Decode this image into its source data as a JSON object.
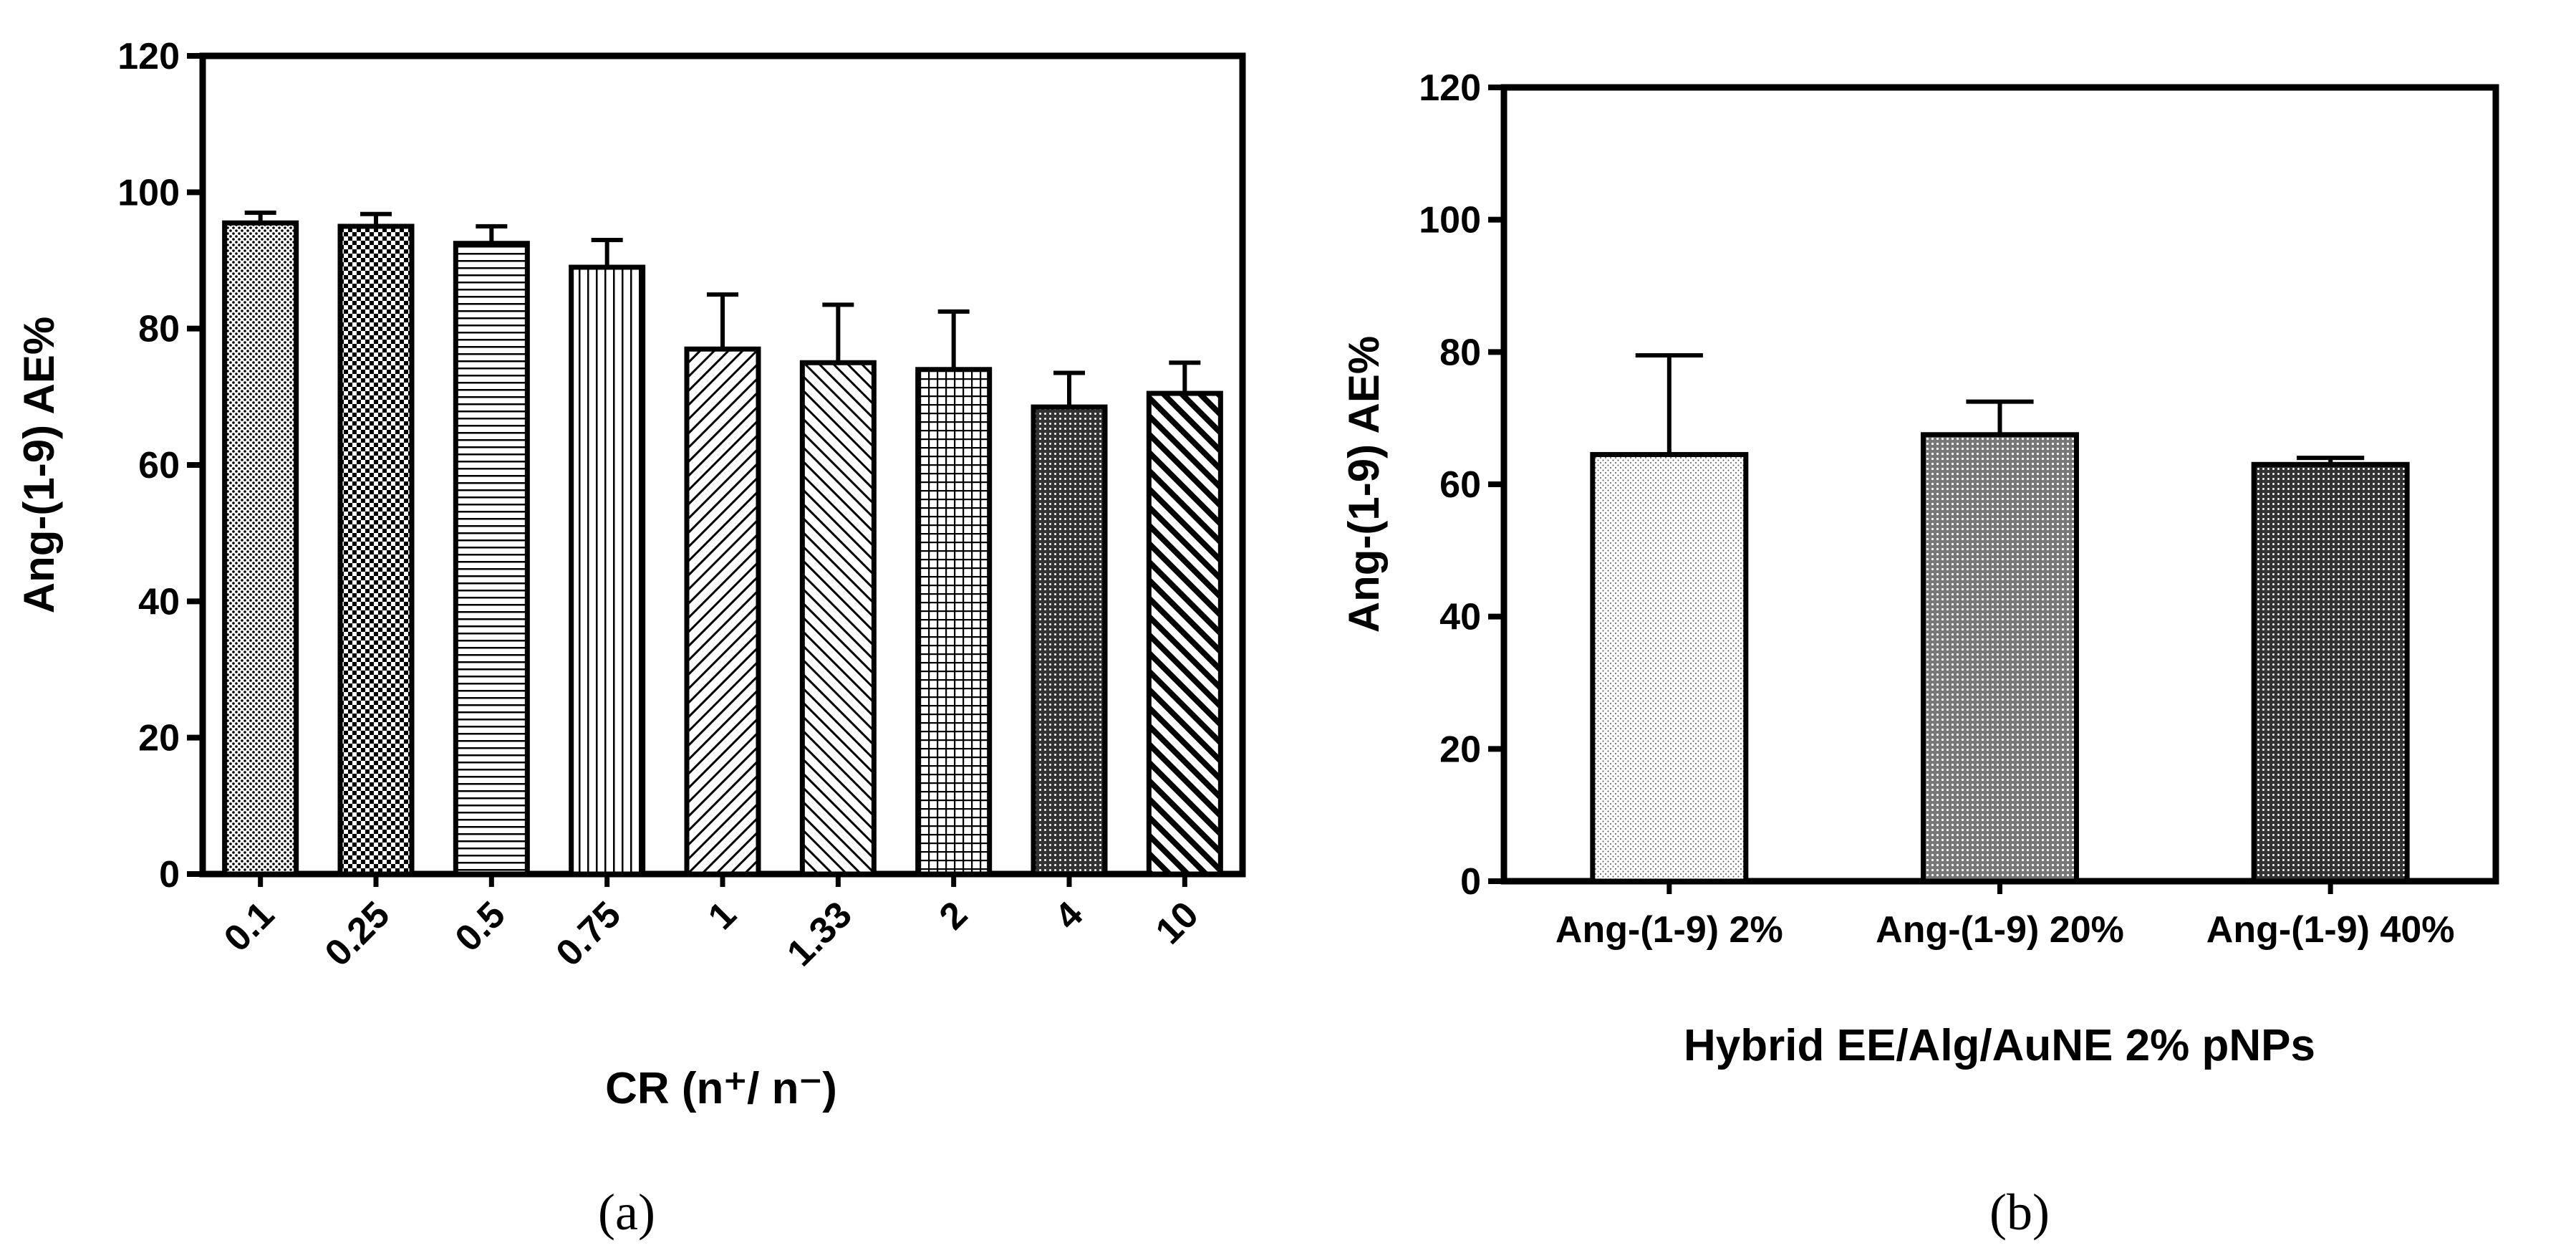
{
  "chart_data": [
    {
      "type": "bar",
      "panel_label": "(a)",
      "ylabel": "Ang-(1-9) AE%",
      "xlabel": "CR (n⁺/ n⁻)",
      "ylim": [
        0,
        120
      ],
      "yticks": [
        "0",
        "20",
        "40",
        "60",
        "80",
        "100",
        "120"
      ],
      "categories": [
        "0.1",
        "0.25",
        "0.5",
        "0.75",
        "1",
        "1.33",
        "2",
        "4",
        "10"
      ],
      "values": [
        95.5,
        95.0,
        92.5,
        89.0,
        77.0,
        75.0,
        74.0,
        68.5,
        70.5
      ],
      "errors": [
        1.5,
        1.8,
        2.5,
        4.0,
        8.0,
        8.5,
        8.5,
        5.0,
        4.5
      ],
      "patterns": [
        "dots-dense",
        "checker",
        "horizontal",
        "vertical",
        "diag-right",
        "diag-left",
        "grid",
        "dots-dark",
        "diag-left-thick"
      ]
    },
    {
      "type": "bar",
      "panel_label": "(b)",
      "ylabel": "Ang-(1-9) AE%",
      "xlabel": "Hybrid EE/Alg/AuNE 2% pNPs",
      "ylim": [
        0,
        120
      ],
      "yticks": [
        "0",
        "20",
        "40",
        "60",
        "80",
        "100",
        "120"
      ],
      "categories": [
        "Ang-(1-9) 2%",
        "Ang-(1-9) 20%",
        "Ang-(1-9) 40%"
      ],
      "values": [
        64.5,
        67.5,
        63.0
      ],
      "errors": [
        15.0,
        5.0,
        1.0
      ],
      "patterns": [
        "dots-light",
        "dots-medium",
        "dots-dark"
      ]
    }
  ]
}
